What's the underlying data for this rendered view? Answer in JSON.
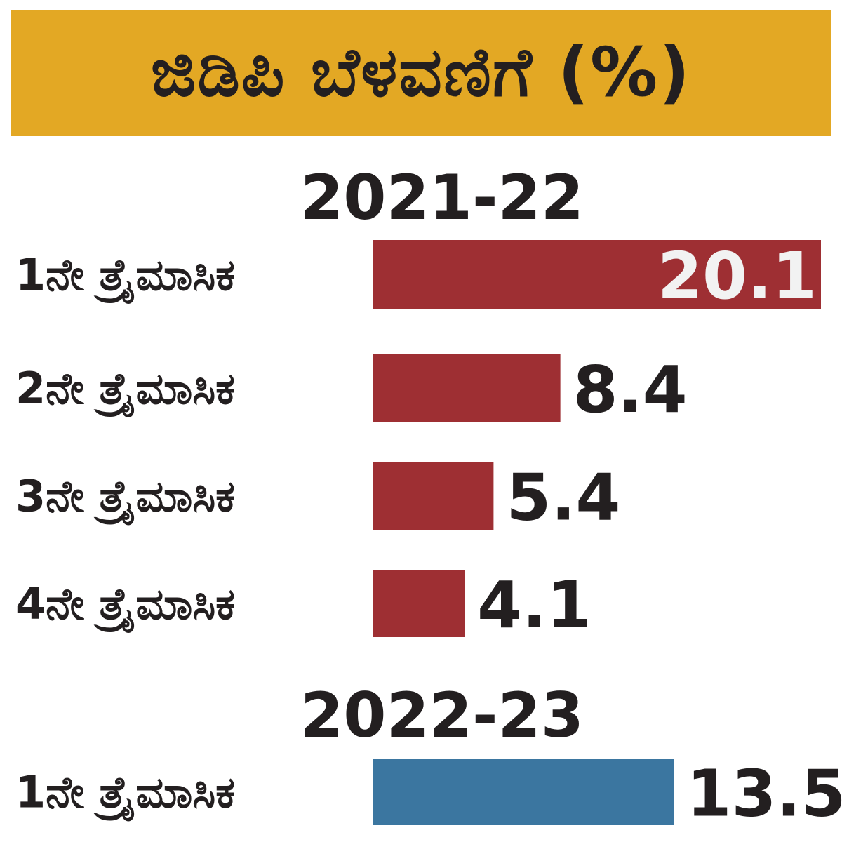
{
  "chart_data": {
    "type": "bar",
    "orientation": "horizontal",
    "title": "ಜಿಡಿಪಿ ಬೆಳವಣಿಗೆ (%)",
    "xlim": [
      0,
      20.1
    ],
    "grid": false,
    "groups": [
      {
        "name": "2021-22",
        "color": "#9e2f33",
        "categories": [
          "1ನೇ ತ್ರೈಮಾಸಿಕ",
          "2ನೇ ತ್ರೈಮಾಸಿಕ",
          "3ನೇ ತ್ರೈಮಾಸಿಕ",
          "4ನೇ ತ್ರೈಮಾಸಿಕ"
        ],
        "values": [
          20.1,
          8.4,
          5.4,
          4.1
        ],
        "value_labels": [
          "20.1",
          "8.4",
          "5.4",
          "4.1"
        ]
      },
      {
        "name": "2022-23",
        "color": "#3b76a0",
        "categories": [
          "1ನೇ ತ್ರೈಮಾಸಿಕ"
        ],
        "values": [
          13.5
        ],
        "value_labels": [
          "13.5"
        ]
      }
    ]
  },
  "colors": {
    "title_background": "#e3a824",
    "text": "#231f20",
    "inside_label": "#f2f2f2"
  }
}
